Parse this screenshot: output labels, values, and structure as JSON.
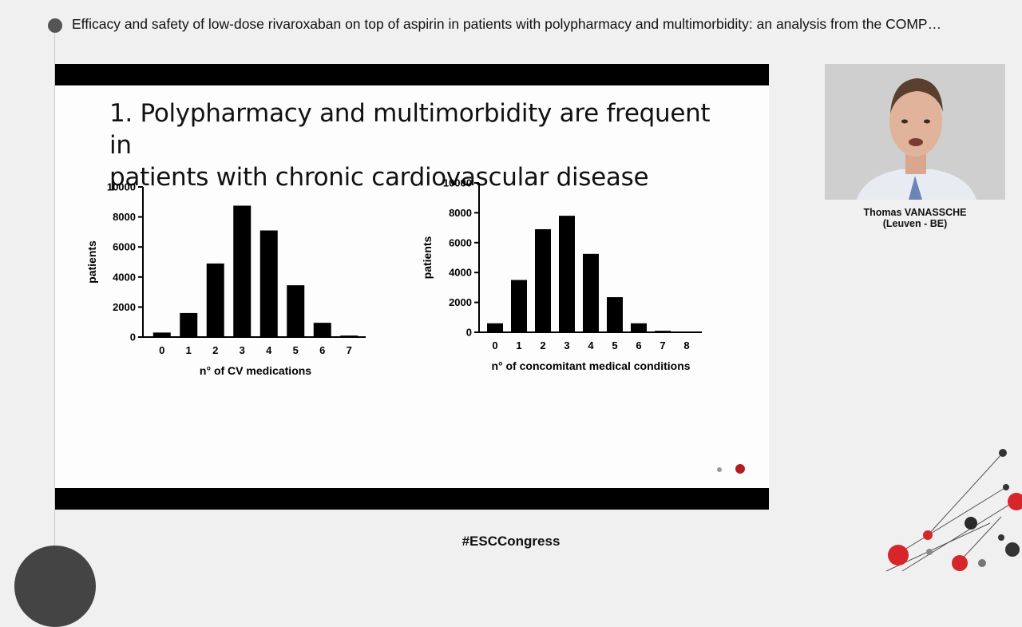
{
  "session": {
    "title": "Efficacy and safety of low-dose rivaroxaban on top of aspirin in patients with polypharmacy and multimorbidity: an analysis from the COMP…"
  },
  "slide": {
    "heading_line1": "1. Polypharmacy and multimorbidity are frequent in",
    "heading_line2": "patients with chronic cardiovascular disease"
  },
  "speaker": {
    "name": "Thomas VANASSCHE",
    "affiliation": "(Leuven - BE)"
  },
  "footer": {
    "hashtag": "#ESCCongress"
  },
  "colors": {
    "accent_red": "#b01e23",
    "bar": "#000000",
    "background": "#f0f0f0"
  },
  "icons": [
    "session-dot-icon",
    "nav-dot-icon",
    "molecule-decoration-icon"
  ],
  "chart_data": [
    {
      "type": "bar",
      "categories": [
        "0",
        "1",
        "2",
        "3",
        "4",
        "5",
        "6",
        "7"
      ],
      "values": [
        300,
        1600,
        4900,
        8750,
        7100,
        3450,
        950,
        100
      ],
      "xlabel": "n° of CV medications",
      "ylabel": "patients",
      "ylim": [
        0,
        10000
      ],
      "yticks": [
        "0",
        "2000",
        "4000",
        "6000",
        "8000",
        "10000"
      ],
      "grid": false,
      "legend": "none"
    },
    {
      "type": "bar",
      "categories": [
        "0",
        "1",
        "2",
        "3",
        "4",
        "5",
        "6",
        "7",
        "8"
      ],
      "values": [
        600,
        3500,
        6900,
        7800,
        5250,
        2350,
        600,
        100,
        20
      ],
      "xlabel": "n° of concomitant medical conditions",
      "ylabel": "patients",
      "ylim": [
        0,
        10000
      ],
      "yticks": [
        "0",
        "2000",
        "4000",
        "6000",
        "8000",
        "10000"
      ],
      "grid": false,
      "legend": "none"
    }
  ]
}
